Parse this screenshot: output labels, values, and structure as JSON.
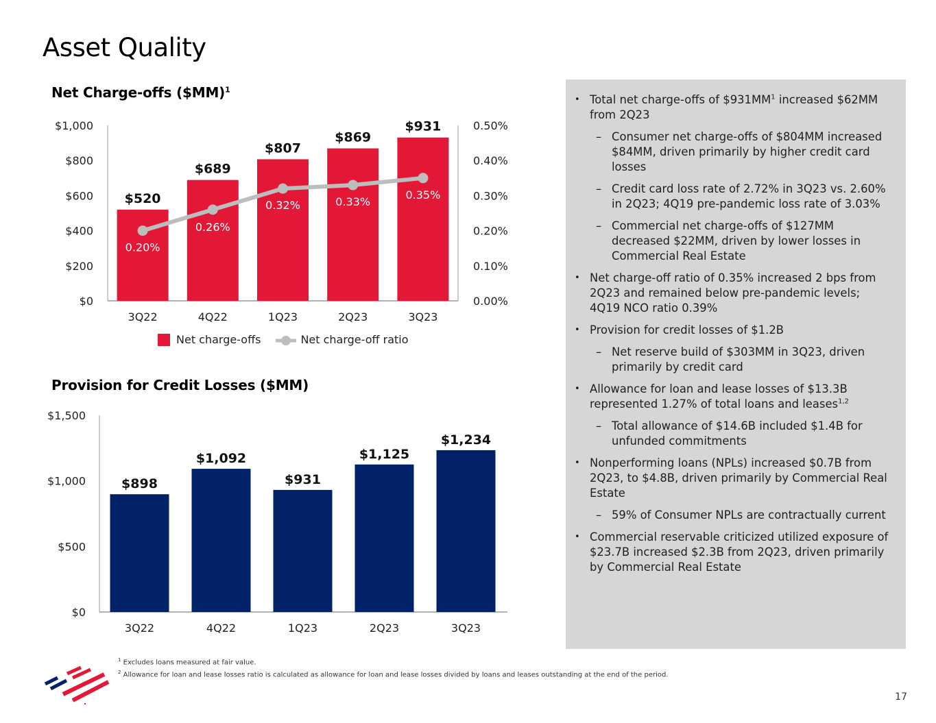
{
  "page": {
    "title": "Asset Quality",
    "page_number": "17"
  },
  "colors": {
    "nco_bar": "#e31837",
    "provision_bar": "#012169",
    "ratio_line": "#bdbdbd",
    "panel_bg": "#d6d6d6"
  },
  "chart_data": [
    {
      "type": "bar",
      "title": "Net Charge-offs ($MM)",
      "title_footnote": "1",
      "categories": [
        "3Q22",
        "4Q22",
        "1Q23",
        "2Q23",
        "3Q23"
      ],
      "series": [
        {
          "name": "Net charge-offs",
          "axis": "left",
          "type": "bar",
          "values": [
            520,
            689,
            807,
            869,
            931
          ],
          "labels": [
            "$520",
            "$689",
            "$807",
            "$869",
            "$931"
          ]
        },
        {
          "name": "Net charge-off ratio",
          "axis": "right",
          "type": "line",
          "values": [
            0.2,
            0.26,
            0.32,
            0.33,
            0.35
          ],
          "labels": [
            "0.20%",
            "0.26%",
            "0.32%",
            "0.33%",
            "0.35%"
          ]
        }
      ],
      "ylim": [
        0,
        1000
      ],
      "yticks": [
        "$0",
        "$200",
        "$400",
        "$600",
        "$800",
        "$1,000"
      ],
      "ylim_right": [
        0,
        0.5
      ],
      "yticks_right": [
        "0.00%",
        "0.10%",
        "0.20%",
        "0.30%",
        "0.40%",
        "0.50%"
      ],
      "legend": [
        "Net charge-offs",
        "Net charge-off ratio"
      ],
      "legend_position": "bottom",
      "grid": false
    },
    {
      "type": "bar",
      "title": "Provision for Credit Losses ($MM)",
      "categories": [
        "3Q22",
        "4Q22",
        "1Q23",
        "2Q23",
        "3Q23"
      ],
      "series": [
        {
          "name": "Provision for credit losses",
          "values": [
            898,
            1092,
            931,
            1125,
            1234
          ],
          "labels": [
            "$898",
            "$1,092",
            "$931",
            "$1,125",
            "$1,234"
          ]
        }
      ],
      "ylim": [
        0,
        1500
      ],
      "yticks": [
        "$0",
        "$500",
        "$1,000",
        "$1,500"
      ],
      "grid": false
    }
  ],
  "commentary": [
    {
      "level": 1,
      "text": "Total net charge-offs of $931MM",
      "sup": "1",
      "text_after": " increased $62MM from 2Q23"
    },
    {
      "level": 2,
      "text": "Consumer net charge-offs of $804MM increased $84MM, driven primarily by higher credit card losses"
    },
    {
      "level": 2,
      "text": "Credit card loss rate of 2.72% in 3Q23 vs. 2.60% in 2Q23; 4Q19 pre-pandemic loss rate of 3.03%"
    },
    {
      "level": 2,
      "text": "Commercial net charge-offs of $127MM decreased $22MM, driven by lower losses in Commercial Real Estate"
    },
    {
      "level": 1,
      "text": "Net charge-off ratio of 0.35% increased 2 bps from 2Q23 and remained below pre-pandemic levels; 4Q19 NCO ratio 0.39%"
    },
    {
      "level": 1,
      "text": "Provision for credit losses of $1.2B"
    },
    {
      "level": 2,
      "text": "Net reserve build of $303MM in 3Q23, driven primarily by credit card"
    },
    {
      "level": 1,
      "text": "Allowance for loan and lease losses of $13.3B represented 1.27% of total loans and leases",
      "sup": "1,2",
      "text_after": ""
    },
    {
      "level": 2,
      "text": "Total allowance of $14.6B included $1.4B for unfunded commitments"
    },
    {
      "level": 1,
      "text": "Nonperforming loans (NPLs) increased $0.7B from 2Q23, to $4.8B, driven primarily by Commercial Real Estate"
    },
    {
      "level": 2,
      "text": "59% of Consumer NPLs are contractually current"
    },
    {
      "level": 1,
      "text": "Commercial reservable criticized utilized exposure of $23.7B increased $2.3B from 2Q23, driven primarily by Commercial Real Estate"
    }
  ],
  "footnotes": [
    {
      "mark": "1",
      "text": "Excludes loans measured at fair value."
    },
    {
      "mark": "2",
      "text": "Allowance for loan and lease losses ratio is calculated as allowance for loan and lease losses divided by loans and leases outstanding at the end of the period."
    }
  ],
  "logo": {
    "icon": "flag-logo-icon"
  }
}
